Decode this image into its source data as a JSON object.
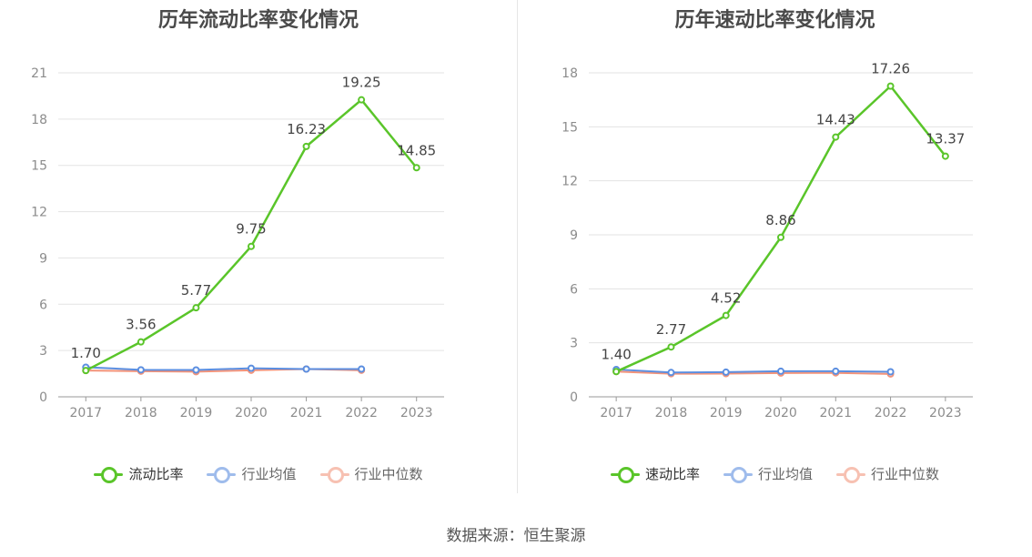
{
  "source_text": "数据来源：恒生聚源",
  "colors": {
    "main": "#5ac52a",
    "avg": "#5b8ee0",
    "median": "#f2937a",
    "grid": "#e3e3e3",
    "axis": "#999999"
  },
  "chart_data": [
    {
      "type": "line",
      "title": "历年流动比率变化情况",
      "categories": [
        "2017",
        "2018",
        "2019",
        "2020",
        "2021",
        "2022",
        "2023"
      ],
      "ylim": [
        0,
        21
      ],
      "yticks": [
        "0",
        "3",
        "6",
        "9",
        "12",
        "15",
        "18",
        "21"
      ],
      "legend_position": "bottom",
      "series": [
        {
          "name": "流动比率",
          "values": [
            1.7,
            3.56,
            5.77,
            9.75,
            16.23,
            19.25,
            14.85
          ],
          "labels": [
            "1.70",
            "3.56",
            "5.77",
            "9.75",
            "16.23",
            "19.25",
            "14.85"
          ]
        },
        {
          "name": "行业均值",
          "values": [
            1.92,
            1.75,
            1.74,
            1.85,
            1.8,
            1.8,
            null
          ]
        },
        {
          "name": "行业中位数",
          "values": [
            1.7,
            1.66,
            1.63,
            1.72,
            1.8,
            1.72,
            null
          ]
        }
      ]
    },
    {
      "type": "line",
      "title": "历年速动比率变化情况",
      "categories": [
        "2017",
        "2018",
        "2019",
        "2020",
        "2021",
        "2022",
        "2023"
      ],
      "ylim": [
        0,
        18
      ],
      "yticks": [
        "0",
        "3",
        "6",
        "9",
        "12",
        "15",
        "18"
      ],
      "legend_position": "bottom",
      "series": [
        {
          "name": "速动比率",
          "values": [
            1.4,
            2.77,
            4.52,
            8.86,
            14.43,
            17.26,
            13.37
          ],
          "labels": [
            "1.40",
            "2.77",
            "4.52",
            "8.86",
            "14.43",
            "17.26",
            "13.37"
          ]
        },
        {
          "name": "行业均值",
          "values": [
            1.52,
            1.35,
            1.37,
            1.42,
            1.42,
            1.39,
            null
          ]
        },
        {
          "name": "行业中位数",
          "values": [
            1.4,
            1.28,
            1.29,
            1.32,
            1.33,
            1.27,
            null
          ]
        }
      ]
    }
  ]
}
